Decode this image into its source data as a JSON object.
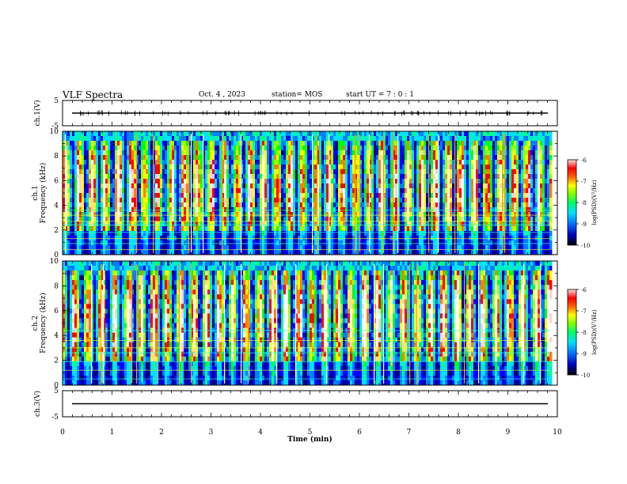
{
  "header": {
    "title": "VLF Spectra",
    "date": "Oct. 4 , 2023",
    "station": "station= MOS",
    "start": "start UT =   7 : 0  : 1"
  },
  "colors": {
    "colormap": [
      "#000080",
      "#0000ff",
      "#0080ff",
      "#00e0ff",
      "#00ff90",
      "#00ff00",
      "#a0ff00",
      "#ffff00",
      "#ff8000",
      "#ff0000",
      "#ffd0d0",
      "#ffffff"
    ],
    "background_missing": "#ffffff"
  },
  "chart_data": [
    {
      "type": "line",
      "panel": "waveform-ch1",
      "ylabel": "ch.1(V)",
      "ylim": [
        -5,
        5
      ],
      "yticks": [
        "5",
        "-5"
      ],
      "xlim": [
        0,
        10
      ],
      "series": [
        {
          "values_description": "flat trace near 0 V",
          "level": 0
        }
      ]
    },
    {
      "type": "heatmap",
      "panel": "spectrogram-ch1",
      "ylabel": "Frequency (kHz)",
      "channel_label": "ch.1",
      "ylim": [
        0,
        10
      ],
      "yticks": [
        "0",
        "2",
        "4",
        "6",
        "8",
        "10"
      ],
      "xlim": [
        0,
        10
      ],
      "colorbar": {
        "label": "log(PSD)(V²/Hz)",
        "range": [
          -10,
          -6
        ],
        "ticks": [
          "-6",
          "-7",
          "-8",
          "-9",
          "-10"
        ]
      }
    },
    {
      "type": "heatmap",
      "panel": "spectrogram-ch2",
      "ylabel": "Frequency (kHz)",
      "channel_label": "ch.2",
      "ylim": [
        0,
        10
      ],
      "yticks": [
        "0",
        "2",
        "4",
        "6",
        "8",
        "10"
      ],
      "xlim": [
        0,
        10
      ],
      "colorbar": {
        "label": "log(PSD)(V²/Hz)",
        "range": [
          -10,
          -6
        ],
        "ticks": [
          "-6",
          "-7",
          "-8",
          "-9",
          "-10"
        ]
      }
    },
    {
      "type": "line",
      "panel": "waveform-ch3",
      "ylabel": "ch.3(V)",
      "ylim": [
        -5,
        5
      ],
      "yticks": [
        "5",
        "-5"
      ],
      "xlim": [
        0,
        10
      ],
      "series": [
        {
          "values_description": "flat trace near 0 V",
          "level": 0
        }
      ]
    }
  ],
  "xaxis": {
    "label": "Time (min)",
    "ticks": [
      "0",
      "1",
      "2",
      "3",
      "4",
      "5",
      "6",
      "7",
      "8",
      "9",
      "10"
    ],
    "data_end_min": 9.85
  }
}
